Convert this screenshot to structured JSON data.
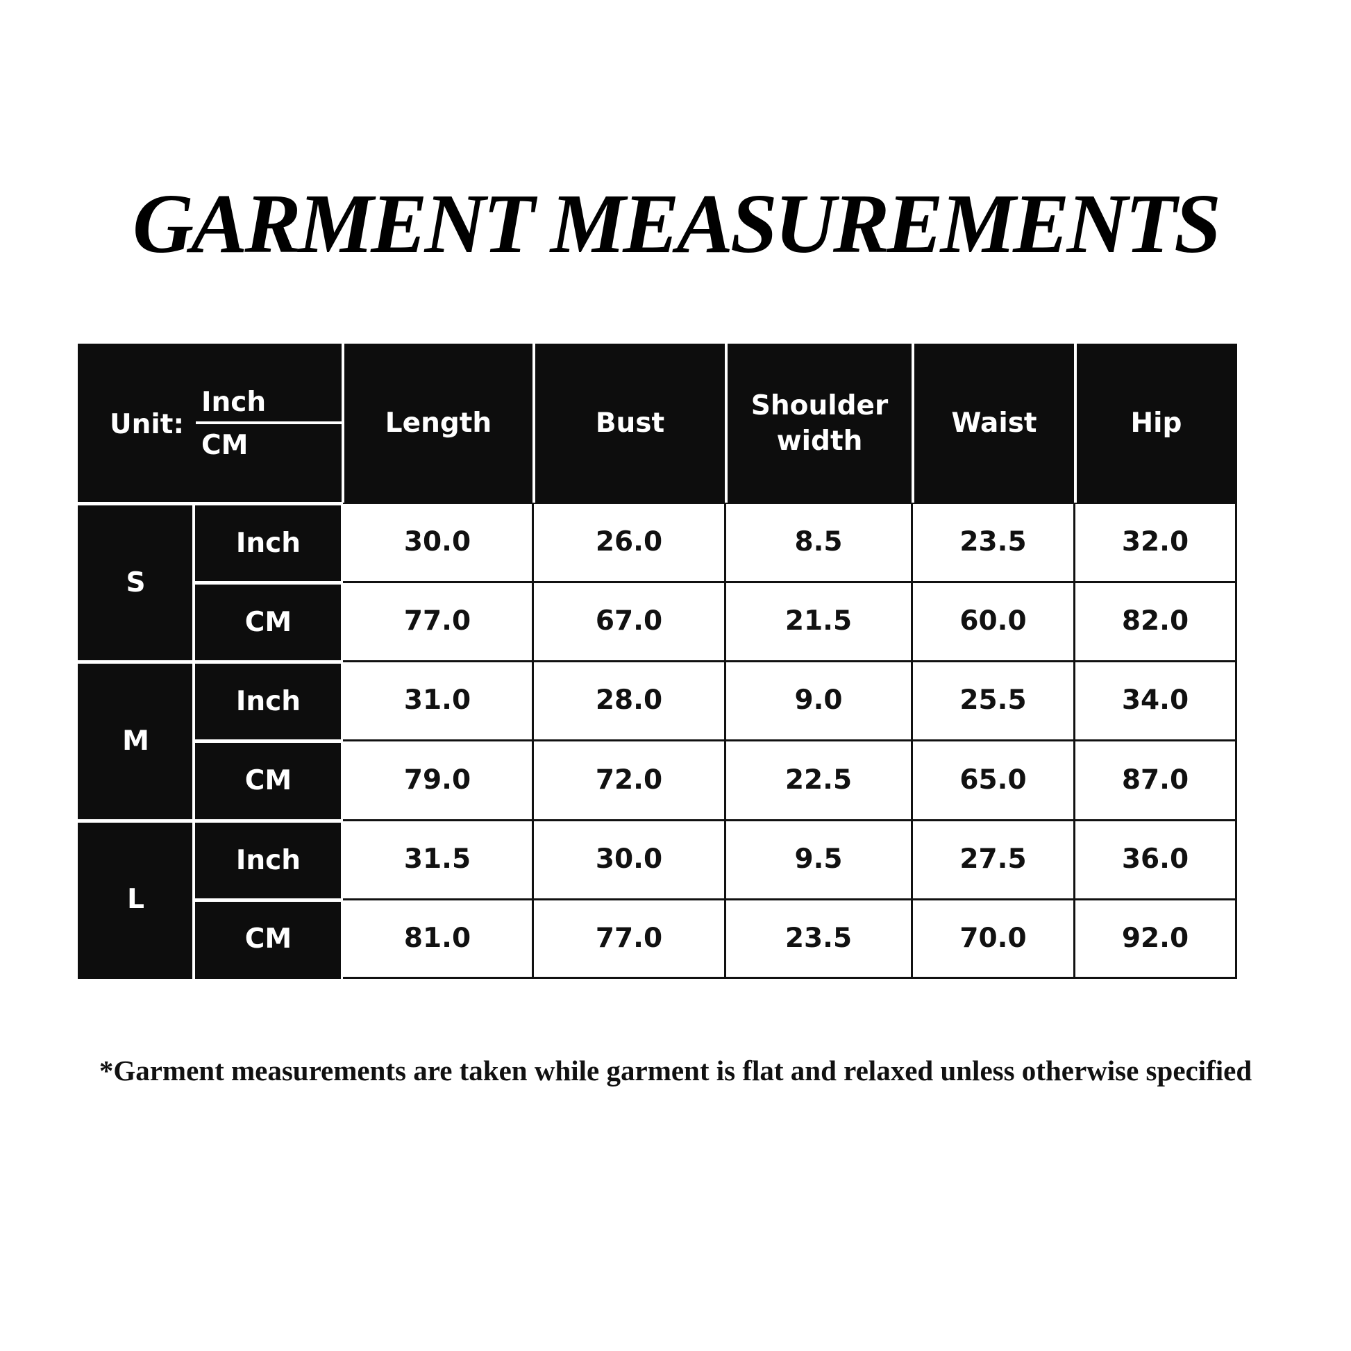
{
  "title": "GARMENT MEASUREMENTS",
  "table": {
    "unit_label": "Unit:",
    "unit_top": "Inch",
    "unit_bottom": "CM",
    "columns": [
      "Length",
      "Bust",
      "Shoulder width",
      "Waist",
      "Hip"
    ],
    "sizes": [
      {
        "size": "S",
        "rows": [
          {
            "unit": "Inch",
            "values": [
              "30.0",
              "26.0",
              "8.5",
              "23.5",
              "32.0"
            ]
          },
          {
            "unit": "CM",
            "values": [
              "77.0",
              "67.0",
              "21.5",
              "60.0",
              "82.0"
            ]
          }
        ]
      },
      {
        "size": "M",
        "rows": [
          {
            "unit": "Inch",
            "values": [
              "31.0",
              "28.0",
              "9.0",
              "25.5",
              "34.0"
            ]
          },
          {
            "unit": "CM",
            "values": [
              "79.0",
              "72.0",
              "22.5",
              "65.0",
              "87.0"
            ]
          }
        ]
      },
      {
        "size": "L",
        "rows": [
          {
            "unit": "Inch",
            "values": [
              "31.5",
              "30.0",
              "9.5",
              "27.5",
              "36.0"
            ]
          },
          {
            "unit": "CM",
            "values": [
              "81.0",
              "77.0",
              "23.5",
              "70.0",
              "92.0"
            ]
          }
        ]
      }
    ]
  },
  "footnote": "*Garment measurements are taken while garment is flat and relaxed unless otherwise specified"
}
